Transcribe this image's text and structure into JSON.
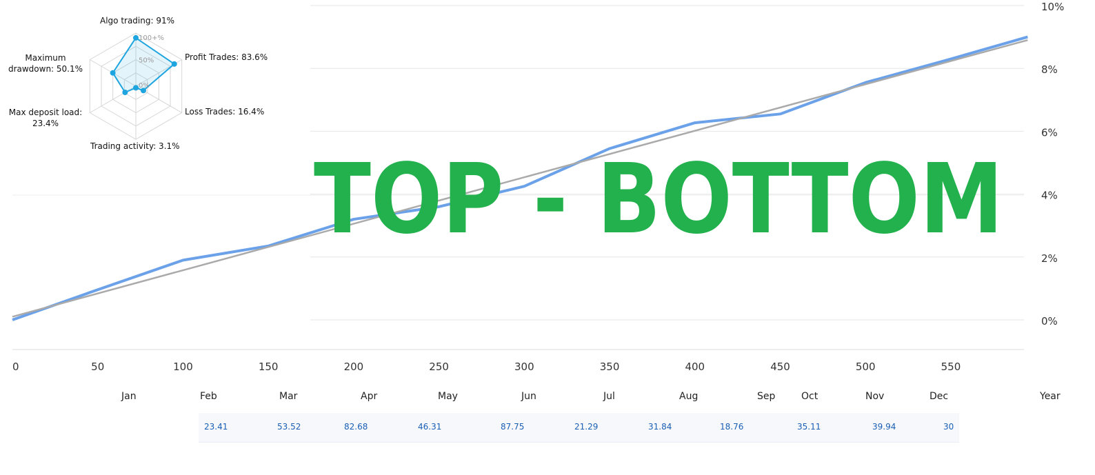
{
  "chart_data": {
    "type": "line",
    "xlim": [
      0,
      595
    ],
    "ylim": [
      -1,
      10
    ],
    "x_ticks": [
      0,
      50,
      100,
      150,
      200,
      250,
      300,
      350,
      400,
      450,
      500,
      550
    ],
    "y_ticks": [
      "0%",
      "2%",
      "4%",
      "6%",
      "8%",
      "10%"
    ],
    "y_tick_values": [
      0,
      2,
      4,
      6,
      8,
      10
    ],
    "grid": true,
    "series": [
      {
        "color": "#6aa1e8",
        "x": [
          0,
          50,
          100,
          150,
          200,
          250,
          300,
          350,
          400,
          450,
          500,
          550,
          595
        ],
        "y": [
          0,
          0.96,
          1.9,
          2.35,
          3.2,
          3.6,
          4.25,
          5.45,
          6.27,
          6.55,
          7.55,
          8.3,
          9.0
        ]
      },
      {
        "color": "#aaaaaa",
        "x": [
          0,
          595
        ],
        "y": [
          0.1,
          8.9
        ]
      }
    ]
  },
  "radar": {
    "axes": [
      {
        "label": "Algo trading: 91%",
        "value": 91
      },
      {
        "label": "Profit Trades: 83.6%",
        "value": 83.6
      },
      {
        "label": "Loss Trades: 16.4%",
        "value": 16.4
      },
      {
        "label": "Trading activity: 3.1%",
        "value": 3.1
      },
      {
        "label": "Max deposit load: 23.4%",
        "value": 23.4
      },
      {
        "label": "Maximum drawdown: 50.1%",
        "value": 50.1
      }
    ],
    "ring_labels": [
      "100+%",
      "50%",
      "0%"
    ],
    "color": "#1ea5e0"
  },
  "watermark": "TOP - BOTTOM",
  "months": [
    "Jan",
    "Feb",
    "Mar",
    "Apr",
    "May",
    "Jun",
    "Jul",
    "Aug",
    "Sep",
    "Oct",
    "Nov",
    "Dec",
    "Year"
  ],
  "month_values": [
    "23.41",
    "53.52",
    "82.68",
    "46.31",
    "87.75",
    "21.29",
    "31.84",
    "18.76",
    "35.11",
    "39.94",
    "30"
  ]
}
